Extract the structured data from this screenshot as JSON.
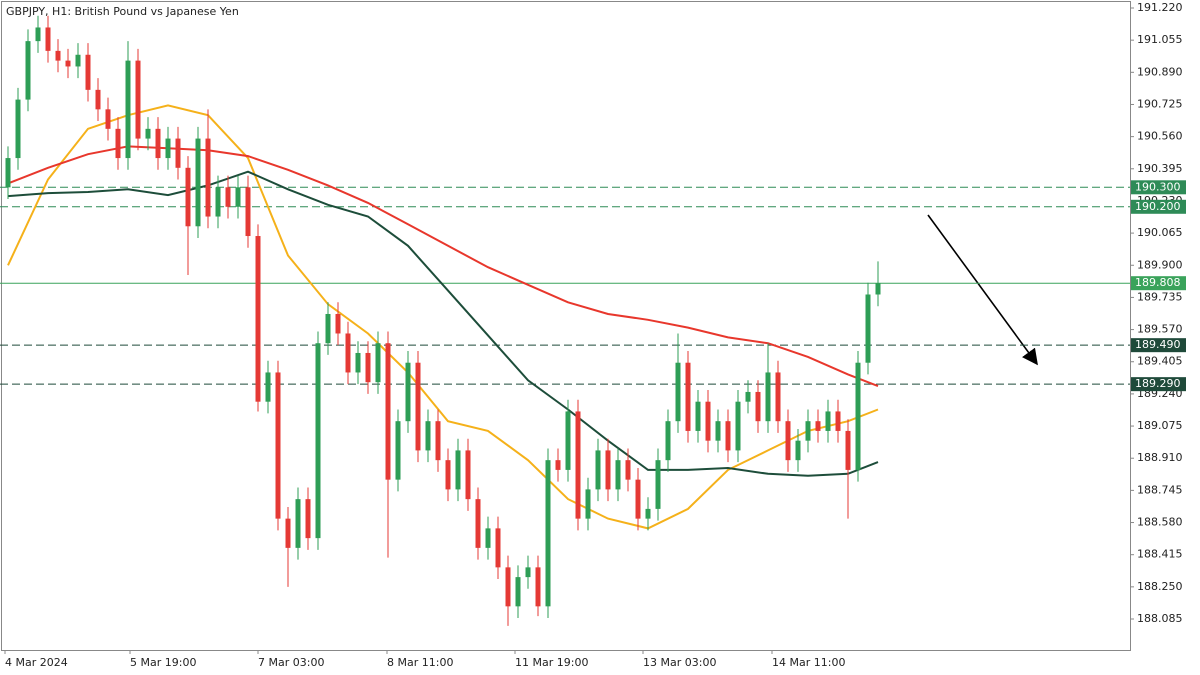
{
  "chart_data": {
    "type": "candlestick",
    "title": "GBPJPY, H1:  British Pound vs Japanese Yen",
    "up_color": "#2e9e56",
    "down_color": "#e53935",
    "open": [
      190.3,
      190.45,
      190.75,
      191.05,
      191.12,
      191.0,
      190.95,
      190.92,
      190.98,
      190.8,
      190.7,
      190.6,
      190.45,
      190.95,
      190.55,
      190.6,
      190.45,
      190.55,
      190.4,
      190.1,
      190.55,
      190.15,
      190.3,
      190.2,
      190.3,
      190.05,
      189.2,
      189.35,
      188.6,
      188.45,
      188.7,
      188.5,
      189.5,
      189.65,
      189.55,
      189.35,
      189.45,
      189.3,
      189.5,
      188.8,
      189.1,
      189.4,
      188.95,
      189.1,
      188.9,
      188.75,
      188.95,
      188.7,
      188.45,
      188.55,
      188.35,
      188.15,
      188.3,
      188.35,
      188.15,
      188.9,
      188.85,
      189.15,
      188.6,
      188.75,
      188.95,
      188.75,
      188.9,
      188.8,
      188.6,
      188.65,
      188.9,
      189.1,
      189.4,
      189.05,
      189.2,
      189.0,
      189.1,
      188.95,
      189.2,
      189.25,
      189.1,
      189.35,
      189.1,
      188.9,
      189.0,
      189.1,
      189.05,
      189.15,
      189.05,
      188.85,
      189.4,
      189.75
    ],
    "high": [
      190.51,
      190.81,
      191.11,
      191.18,
      191.18,
      191.06,
      191.01,
      191.04,
      191.04,
      190.86,
      190.76,
      190.66,
      191.05,
      191.01,
      190.66,
      190.66,
      190.61,
      190.61,
      190.46,
      190.61,
      190.7,
      190.36,
      190.36,
      190.36,
      190.36,
      190.11,
      189.41,
      189.41,
      188.66,
      188.76,
      188.76,
      189.56,
      189.71,
      189.71,
      189.61,
      189.51,
      189.51,
      189.56,
      189.56,
      189.16,
      189.46,
      189.46,
      189.16,
      189.16,
      188.96,
      189.01,
      189.01,
      188.76,
      188.61,
      188.61,
      188.41,
      188.36,
      188.41,
      188.41,
      188.96,
      188.96,
      189.21,
      189.21,
      188.81,
      189.01,
      189.01,
      188.96,
      188.96,
      188.86,
      188.71,
      188.96,
      189.16,
      189.55,
      189.46,
      189.26,
      189.26,
      189.16,
      189.16,
      189.26,
      189.31,
      189.31,
      189.5,
      189.41,
      189.16,
      189.06,
      189.16,
      189.16,
      189.21,
      189.21,
      189.11,
      189.46,
      189.81,
      189.92
    ],
    "low": [
      190.24,
      190.39,
      190.69,
      190.99,
      190.94,
      190.89,
      190.86,
      190.86,
      190.74,
      190.64,
      190.54,
      190.39,
      190.39,
      190.49,
      190.49,
      190.39,
      190.39,
      190.34,
      189.85,
      190.04,
      190.09,
      190.09,
      190.14,
      190.14,
      189.99,
      189.15,
      189.14,
      188.54,
      188.25,
      188.39,
      188.44,
      188.44,
      189.44,
      189.49,
      189.29,
      189.29,
      189.24,
      189.24,
      188.4,
      188.74,
      189.04,
      188.89,
      188.89,
      188.84,
      188.69,
      188.69,
      188.64,
      188.39,
      188.39,
      188.29,
      188.05,
      188.09,
      188.24,
      188.1,
      188.09,
      188.79,
      188.79,
      188.54,
      188.54,
      188.69,
      188.69,
      188.69,
      188.74,
      188.54,
      188.54,
      188.59,
      188.84,
      189.04,
      188.99,
      188.99,
      188.94,
      188.94,
      188.89,
      188.89,
      189.14,
      189.04,
      189.04,
      189.04,
      188.84,
      188.84,
      188.94,
      188.99,
      188.99,
      188.99,
      188.6,
      188.79,
      189.34,
      189.69
    ],
    "close": [
      190.45,
      190.75,
      191.05,
      191.12,
      191.0,
      190.95,
      190.92,
      190.98,
      190.8,
      190.7,
      190.6,
      190.45,
      190.95,
      190.55,
      190.6,
      190.45,
      190.55,
      190.4,
      190.1,
      190.55,
      190.15,
      190.3,
      190.2,
      190.3,
      190.05,
      189.2,
      189.35,
      188.6,
      188.45,
      188.7,
      188.5,
      189.5,
      189.65,
      189.55,
      189.35,
      189.45,
      189.3,
      189.5,
      188.8,
      189.1,
      189.4,
      188.95,
      189.1,
      188.9,
      188.75,
      188.95,
      188.7,
      188.45,
      188.55,
      188.35,
      188.15,
      188.3,
      188.35,
      188.15,
      188.9,
      188.85,
      189.15,
      188.6,
      188.75,
      188.95,
      188.75,
      188.9,
      188.8,
      188.6,
      188.65,
      188.9,
      189.1,
      189.4,
      189.05,
      189.2,
      189.0,
      189.1,
      188.95,
      189.2,
      189.25,
      189.1,
      189.35,
      189.1,
      188.9,
      189.0,
      189.1,
      189.05,
      189.15,
      189.05,
      188.85,
      189.4,
      189.75,
      189.808
    ],
    "series": [
      {
        "color": "#f5b11a",
        "x": [
          0,
          4,
          8,
          12,
          16,
          20,
          24,
          28,
          32,
          36,
          40,
          44,
          48,
          52,
          56,
          60,
          64,
          68,
          72,
          76,
          80,
          84,
          87
        ],
        "values": [
          189.9,
          190.34,
          190.6,
          190.67,
          190.72,
          190.67,
          190.45,
          189.95,
          189.7,
          189.55,
          189.35,
          189.1,
          189.05,
          188.9,
          188.7,
          188.6,
          188.55,
          188.65,
          188.85,
          188.95,
          189.05,
          189.1,
          189.16
        ]
      },
      {
        "color": "#e8372c",
        "x": [
          0,
          4,
          8,
          12,
          16,
          20,
          24,
          28,
          32,
          36,
          40,
          44,
          48,
          52,
          56,
          60,
          64,
          68,
          72,
          76,
          80,
          84,
          87
        ],
        "values": [
          190.32,
          190.4,
          190.47,
          190.51,
          190.5,
          190.49,
          190.46,
          190.39,
          190.31,
          190.22,
          190.11,
          190.0,
          189.89,
          189.8,
          189.71,
          189.65,
          189.62,
          189.58,
          189.53,
          189.5,
          189.43,
          189.34,
          189.28
        ]
      },
      {
        "color": "#1d4d3a",
        "x": [
          0,
          4,
          8,
          12,
          16,
          20,
          24,
          28,
          32,
          36,
          40,
          44,
          48,
          52,
          56,
          60,
          64,
          68,
          72,
          76,
          80,
          84,
          87
        ],
        "values": [
          190.255,
          190.27,
          190.276,
          190.29,
          190.26,
          190.31,
          190.38,
          190.29,
          190.21,
          190.15,
          190.0,
          189.77,
          189.54,
          189.31,
          189.16,
          189.0,
          188.85,
          188.85,
          188.86,
          188.83,
          188.82,
          188.83,
          188.89
        ]
      }
    ],
    "levels": [
      {
        "value": 190.3,
        "label": "190.300",
        "color": "#2e8b57",
        "dashed": true
      },
      {
        "value": 190.2,
        "label": "190.200",
        "color": "#2e8b57",
        "dashed": true
      },
      {
        "value": 189.808,
        "label": "189.808",
        "color": "#3aa35b",
        "dashed": false
      },
      {
        "value": 189.49,
        "label": "189.490",
        "color": "#1f4a3a",
        "dashed": true
      },
      {
        "value": 189.29,
        "label": "189.290",
        "color": "#1f4a3a",
        "dashed": true
      }
    ],
    "xlim": [
      -0.8,
      112.2
    ],
    "ylim": [
      187.926,
      191.261
    ],
    "xticks": [
      {
        "value": -0.3,
        "label": "4 Mar 2024"
      },
      {
        "value": 12.2,
        "label": "5 Mar 19:00"
      },
      {
        "value": 25.0,
        "label": "7 Mar 03:00"
      },
      {
        "value": 37.9,
        "label": "8 Mar 11:00"
      },
      {
        "value": 50.7,
        "label": "11 Mar 19:00"
      },
      {
        "value": 63.5,
        "label": "13 Mar 03:00"
      },
      {
        "value": 76.4,
        "label": "14 Mar 11:00"
      }
    ],
    "yticks": [
      {
        "value": 191.22,
        "label": "191.220"
      },
      {
        "value": 191.055,
        "label": "191.055"
      },
      {
        "value": 190.89,
        "label": "190.890"
      },
      {
        "value": 190.725,
        "label": "190.725"
      },
      {
        "value": 190.56,
        "label": "190.560"
      },
      {
        "value": 190.395,
        "label": "190.395"
      },
      {
        "value": 190.23,
        "label": "190.230"
      },
      {
        "value": 190.065,
        "label": "190.065"
      },
      {
        "value": 189.9,
        "label": "189.900"
      },
      {
        "value": 189.735,
        "label": "189.735"
      },
      {
        "value": 189.57,
        "label": "189.570"
      },
      {
        "value": 189.405,
        "label": "189.405"
      },
      {
        "value": 189.24,
        "label": "189.240"
      },
      {
        "value": 189.075,
        "label": "189.075"
      },
      {
        "value": 188.91,
        "label": "188.910"
      },
      {
        "value": 188.745,
        "label": "188.745"
      },
      {
        "value": 188.58,
        "label": "188.580"
      },
      {
        "value": 188.415,
        "label": "188.415"
      },
      {
        "value": 188.25,
        "label": "188.250"
      },
      {
        "value": 188.085,
        "label": "188.085"
      }
    ]
  }
}
